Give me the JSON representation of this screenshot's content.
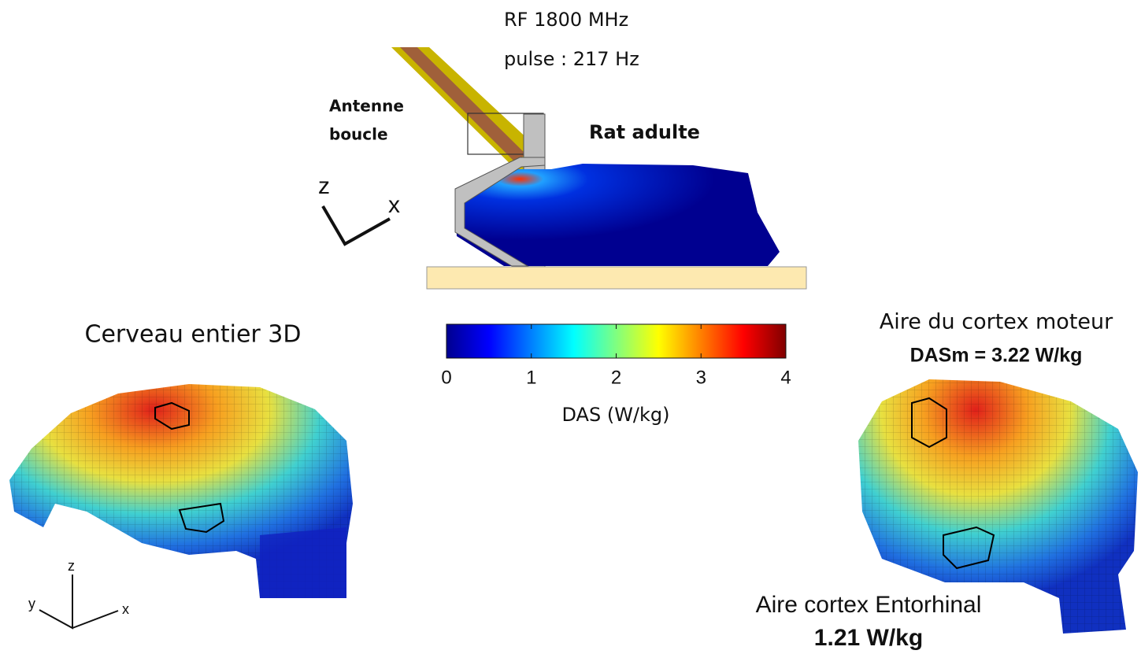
{
  "header": {
    "line1": "RF 1800 MHz",
    "line2": "pulse : 217 Hz"
  },
  "antenna_label": [
    "Antenne",
    "boucle"
  ],
  "rat_label": "Rat adulte",
  "top_axes": {
    "z": "z",
    "x": "x"
  },
  "colorbar": {
    "label": "DAS (W/kg)",
    "range": [
      0,
      4
    ],
    "ticks": [
      0,
      1,
      2,
      3,
      4
    ]
  },
  "left_panel": {
    "title": "Cerveau entier 3D",
    "axes": {
      "z": "z",
      "y": "y",
      "x": "x"
    }
  },
  "right_panel": {
    "title": "Aire  du cortex moteur",
    "motor_value": "DASm = 3.22 W/kg",
    "entorhinal_title": "Aire cortex Entorhinal",
    "entorhinal_value": "1.21 W/kg"
  }
}
